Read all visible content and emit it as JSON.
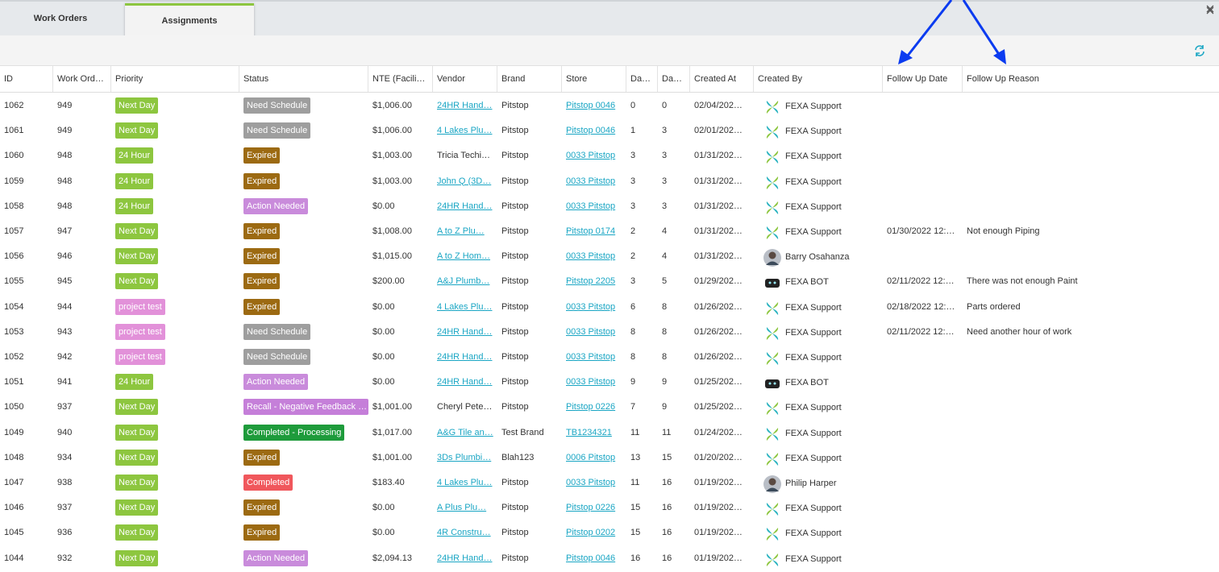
{
  "tabs": [
    {
      "label": "Work Orders",
      "active": false
    },
    {
      "label": "Assignments",
      "active": true
    }
  ],
  "table": {
    "headers": [
      "ID",
      "Work Ord…",
      "Priority",
      "Status",
      "NTE (Facili…",
      "Vendor",
      "Brand",
      "Store",
      "Da…",
      "Da…",
      "Created At",
      "Created By",
      "Follow Up Date",
      "Follow Up Reason"
    ],
    "rows": [
      {
        "id": "1062",
        "work_order": "949",
        "priority": {
          "label": "Next Day",
          "color": "#8dc63f"
        },
        "status": {
          "label": "Need Schedule",
          "color": "#9e9e9e"
        },
        "nte": "$1,006.00",
        "vendor": "24HR Hand…",
        "brand": "Pitstop",
        "store": "Pitstop 0046",
        "days_a": "0",
        "days_b": "0",
        "created_at": "02/04/202…",
        "created_by": "FEXA Support",
        "avatar": "fexa"
      },
      {
        "id": "1061",
        "work_order": "949",
        "priority": {
          "label": "Next Day",
          "color": "#8dc63f"
        },
        "status": {
          "label": "Need Schedule",
          "color": "#9e9e9e"
        },
        "nte": "$1,006.00",
        "vendor": "4 Lakes Plu…",
        "brand": "Pitstop",
        "store": "Pitstop 0046",
        "days_a": "1",
        "days_b": "3",
        "created_at": "02/01/202…",
        "created_by": "FEXA Support",
        "avatar": "fexa"
      },
      {
        "id": "1060",
        "work_order": "948",
        "priority": {
          "label": "24 Hour",
          "color": "#8dc63f"
        },
        "status": {
          "label": "Expired",
          "color": "#9c6a12"
        },
        "nte": "$1,003.00",
        "vendor": "Tricia Techi…",
        "vendor_plain": true,
        "brand": "Pitstop",
        "store": "0033 Pitstop",
        "days_a": "3",
        "days_b": "3",
        "created_at": "01/31/202…",
        "created_by": "FEXA Support",
        "avatar": "fexa"
      },
      {
        "id": "1059",
        "work_order": "948",
        "priority": {
          "label": "24 Hour",
          "color": "#8dc63f"
        },
        "status": {
          "label": "Expired",
          "color": "#9c6a12"
        },
        "nte": "$1,003.00",
        "vendor": "John Q (3D…",
        "brand": "Pitstop",
        "store": "0033 Pitstop",
        "days_a": "3",
        "days_b": "3",
        "created_at": "01/31/202…",
        "created_by": "FEXA Support",
        "avatar": "fexa"
      },
      {
        "id": "1058",
        "work_order": "948",
        "priority": {
          "label": "24 Hour",
          "color": "#8dc63f"
        },
        "status": {
          "label": "Action Needed",
          "color": "#c98bdb"
        },
        "nte": "$0.00",
        "vendor": "24HR Hand…",
        "brand": "Pitstop",
        "store": "0033 Pitstop",
        "days_a": "3",
        "days_b": "3",
        "created_at": "01/31/202…",
        "created_by": "FEXA Support",
        "avatar": "fexa"
      },
      {
        "id": "1057",
        "work_order": "947",
        "priority": {
          "label": "Next Day",
          "color": "#8dc63f"
        },
        "status": {
          "label": "Expired",
          "color": "#9c6a12"
        },
        "nte": "$1,008.00",
        "vendor": "A to Z Plu…",
        "brand": "Pitstop",
        "store": "Pitstop 0174",
        "days_a": "2",
        "days_b": "4",
        "created_at": "01/31/202…",
        "created_by": "FEXA Support",
        "avatar": "fexa",
        "follow_up_date": "01/30/2022 12:…",
        "follow_up_reason": "Not enough Piping"
      },
      {
        "id": "1056",
        "work_order": "946",
        "priority": {
          "label": "Next Day",
          "color": "#8dc63f"
        },
        "status": {
          "label": "Expired",
          "color": "#9c6a12"
        },
        "nte": "$1,015.00",
        "vendor": "A to Z Hom…",
        "brand": "Pitstop",
        "store": "0033 Pitstop",
        "days_a": "2",
        "days_b": "4",
        "created_at": "01/31/202…",
        "created_by": "Barry Osahanza",
        "avatar": "photo"
      },
      {
        "id": "1055",
        "work_order": "945",
        "priority": {
          "label": "Next Day",
          "color": "#8dc63f"
        },
        "status": {
          "label": "Expired",
          "color": "#9c6a12"
        },
        "nte": "$200.00",
        "vendor": "A&J Plumb…",
        "brand": "Pitstop",
        "store": "Pitstop 2205",
        "days_a": "3",
        "days_b": "5",
        "created_at": "01/29/202…",
        "created_by": "FEXA BOT",
        "avatar": "bot",
        "follow_up_date": "02/11/2022 12:…",
        "follow_up_reason": "There was not enough Paint"
      },
      {
        "id": "1054",
        "work_order": "944",
        "priority": {
          "label": "project test",
          "color": "#e291d9"
        },
        "status": {
          "label": "Expired",
          "color": "#9c6a12"
        },
        "nte": "$0.00",
        "vendor": "4 Lakes Plu…",
        "brand": "Pitstop",
        "store": "0033 Pitstop",
        "days_a": "6",
        "days_b": "8",
        "created_at": "01/26/202…",
        "created_by": "FEXA Support",
        "avatar": "fexa",
        "follow_up_date": "02/18/2022 12:…",
        "follow_up_reason": "Parts ordered"
      },
      {
        "id": "1053",
        "work_order": "943",
        "priority": {
          "label": "project test",
          "color": "#e291d9"
        },
        "status": {
          "label": "Need Schedule",
          "color": "#9e9e9e"
        },
        "nte": "$0.00",
        "vendor": "24HR Hand…",
        "brand": "Pitstop",
        "store": "0033 Pitstop",
        "days_a": "8",
        "days_b": "8",
        "created_at": "01/26/202…",
        "created_by": "FEXA Support",
        "avatar": "fexa",
        "follow_up_date": "02/11/2022 12:…",
        "follow_up_reason": "Need another hour of work"
      },
      {
        "id": "1052",
        "work_order": "942",
        "priority": {
          "label": "project test",
          "color": "#e291d9"
        },
        "status": {
          "label": "Need Schedule",
          "color": "#9e9e9e"
        },
        "nte": "$0.00",
        "vendor": "24HR Hand…",
        "brand": "Pitstop",
        "store": "0033 Pitstop",
        "days_a": "8",
        "days_b": "8",
        "created_at": "01/26/202…",
        "created_by": "FEXA Support",
        "avatar": "fexa"
      },
      {
        "id": "1051",
        "work_order": "941",
        "priority": {
          "label": "24 Hour",
          "color": "#8dc63f"
        },
        "status": {
          "label": "Action Needed",
          "color": "#c98bdb"
        },
        "nte": "$0.00",
        "vendor": "24HR Hand…",
        "brand": "Pitstop",
        "store": "0033 Pitstop",
        "days_a": "9",
        "days_b": "9",
        "created_at": "01/25/202…",
        "created_by": "FEXA BOT",
        "avatar": "bot"
      },
      {
        "id": "1050",
        "work_order": "937",
        "priority": {
          "label": "Next Day",
          "color": "#8dc63f"
        },
        "status": {
          "label": "Recall - Negative Feedback …",
          "color": "#c57fd9"
        },
        "nte": "$1,001.00",
        "vendor": "Cheryl Pete…",
        "vendor_plain": true,
        "brand": "Pitstop",
        "store": "Pitstop 0226",
        "days_a": "7",
        "days_b": "9",
        "created_at": "01/25/202…",
        "created_by": "FEXA Support",
        "avatar": "fexa"
      },
      {
        "id": "1049",
        "work_order": "940",
        "priority": {
          "label": "Next Day",
          "color": "#8dc63f"
        },
        "status": {
          "label": "Completed - Processing",
          "color": "#1e9b3b"
        },
        "nte": "$1,017.00",
        "vendor": "A&G Tile an…",
        "brand": "Test Brand",
        "store": "TB1234321",
        "days_a": "11",
        "days_b": "11",
        "created_at": "01/24/202…",
        "created_by": "FEXA Support",
        "avatar": "fexa"
      },
      {
        "id": "1048",
        "work_order": "934",
        "priority": {
          "label": "Next Day",
          "color": "#8dc63f"
        },
        "status": {
          "label": "Expired",
          "color": "#9c6a12"
        },
        "nte": "$1,001.00",
        "vendor": "3Ds Plumbi…",
        "brand": "Blah123",
        "store": "0006 Pitstop",
        "days_a": "13",
        "days_b": "15",
        "created_at": "01/20/202…",
        "created_by": "FEXA Support",
        "avatar": "fexa"
      },
      {
        "id": "1047",
        "work_order": "938",
        "priority": {
          "label": "Next Day",
          "color": "#8dc63f"
        },
        "status": {
          "label": "Completed",
          "color": "#f0575c"
        },
        "nte": "$183.40",
        "vendor": "4 Lakes Plu…",
        "brand": "Pitstop",
        "store": "0033 Pitstop",
        "days_a": "11",
        "days_b": "16",
        "created_at": "01/19/202…",
        "created_by": "Philip Harper",
        "avatar": "photo"
      },
      {
        "id": "1046",
        "work_order": "937",
        "priority": {
          "label": "Next Day",
          "color": "#8dc63f"
        },
        "status": {
          "label": "Expired",
          "color": "#9c6a12"
        },
        "nte": "$0.00",
        "vendor": "A Plus Plu…",
        "brand": "Pitstop",
        "store": "Pitstop 0226",
        "days_a": "15",
        "days_b": "16",
        "created_at": "01/19/202…",
        "created_by": "FEXA Support",
        "avatar": "fexa"
      },
      {
        "id": "1045",
        "work_order": "936",
        "priority": {
          "label": "Next Day",
          "color": "#8dc63f"
        },
        "status": {
          "label": "Expired",
          "color": "#9c6a12"
        },
        "nte": "$0.00",
        "vendor": "4R Constru…",
        "brand": "Pitstop",
        "store": "Pitstop 0202",
        "days_a": "15",
        "days_b": "16",
        "created_at": "01/19/202…",
        "created_by": "FEXA Support",
        "avatar": "fexa"
      },
      {
        "id": "1044",
        "work_order": "932",
        "priority": {
          "label": "Next Day",
          "color": "#8dc63f"
        },
        "status": {
          "label": "Action Needed",
          "color": "#c98bdb"
        },
        "nte": "$2,094.13",
        "vendor": "24HR Hand…",
        "brand": "Pitstop",
        "store": "Pitstop 0046",
        "days_a": "16",
        "days_b": "16",
        "created_at": "01/19/202…",
        "created_by": "FEXA Support",
        "avatar": "fexa"
      }
    ]
  }
}
